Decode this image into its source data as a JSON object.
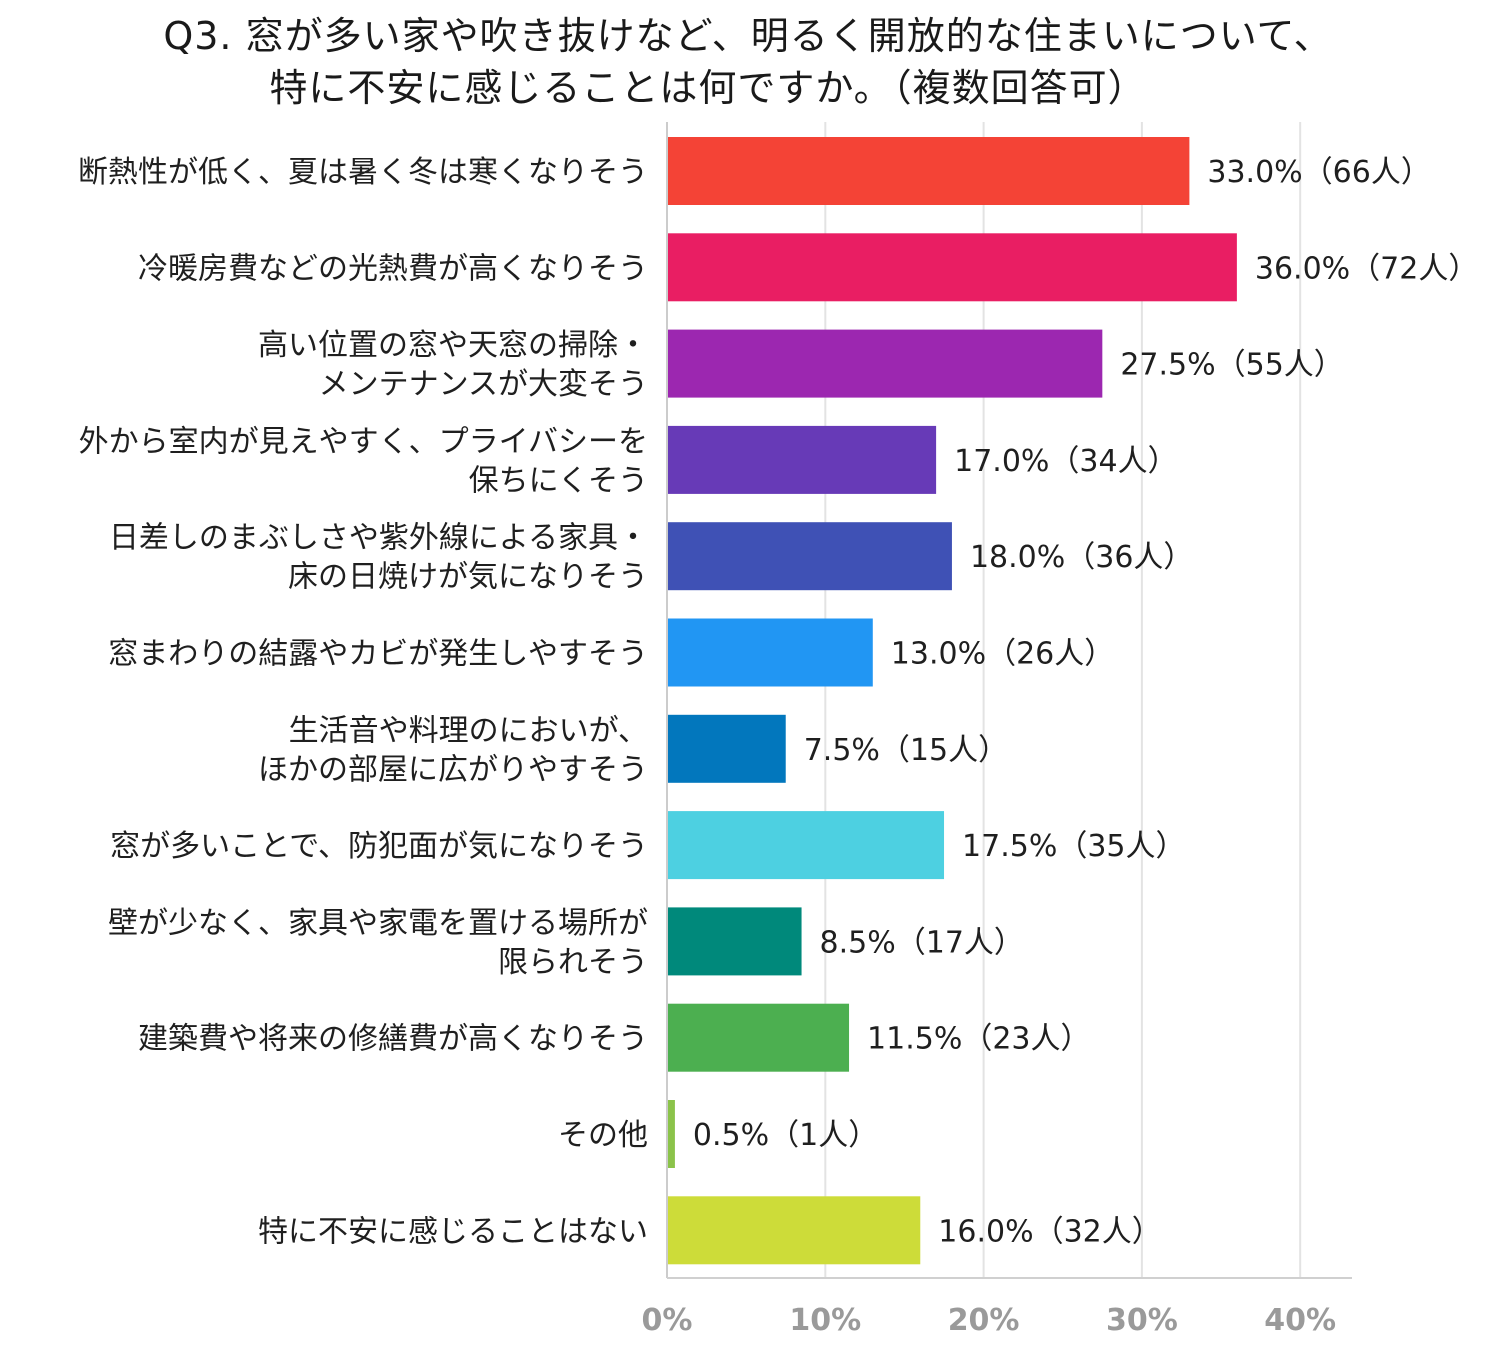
{
  "title_lines": [
    "Q3. 窓が多い家や吹き抜けなど、明るく開放的な住まいについて、",
    "特に不安に感じることは何ですか。（複数回答可）"
  ],
  "chart_data": {
    "type": "bar",
    "orientation": "horizontal",
    "categories": [
      [
        "断熱性が低く、夏は暑く冬は寒くなりそう"
      ],
      [
        "冷暖房費などの光熱費が高くなりそう"
      ],
      [
        "高い位置の窓や天窓の掃除・",
        "メンテナンスが大変そう"
      ],
      [
        "外から室内が見えやすく、プライバシーを",
        "保ちにくそう"
      ],
      [
        "日差しのまぶしさや紫外線による家具・",
        "床の日焼けが気になりそう"
      ],
      [
        "窓まわりの結露やカビが発生しやすそう"
      ],
      [
        "生活音や料理のにおいが、",
        "ほかの部屋に広がりやすそう"
      ],
      [
        "窓が多いことで、防犯面が気になりそう"
      ],
      [
        "壁が少なく、家具や家電を置ける場所が",
        "限られそう"
      ],
      [
        "建築費や将来の修繕費が高くなりそう"
      ],
      [
        "その他"
      ],
      [
        "特に不安に感じることはない"
      ]
    ],
    "values": [
      33.0,
      36.0,
      27.5,
      17.0,
      18.0,
      13.0,
      7.5,
      17.5,
      8.5,
      11.5,
      0.5,
      16.0
    ],
    "data_labels": [
      "33.0%（66人）",
      "36.0%（72人）",
      "27.5%（55人）",
      "17.0%（34人）",
      "18.0%（36人）",
      "13.0%（26人）",
      "7.5%（15人）",
      "17.5%（35人）",
      "8.5%（17人）",
      "11.5%（23人）",
      "0.5%（1人）",
      "16.0%（32人）"
    ],
    "colors": [
      "#f44336",
      "#e91e63",
      "#9c27b0",
      "#673ab7",
      "#3f51b5",
      "#2196f3",
      "#0277bd",
      "#4dd0e1",
      "#00897b",
      "#4caf50",
      "#8bc34a",
      "#cddc39"
    ],
    "x_ticks": [
      "0%",
      "10%",
      "20%",
      "30%",
      "40%"
    ],
    "x_tick_values": [
      0,
      10,
      20,
      30,
      40
    ],
    "xlim": [
      0,
      43
    ],
    "grid": true,
    "legend": "none"
  }
}
